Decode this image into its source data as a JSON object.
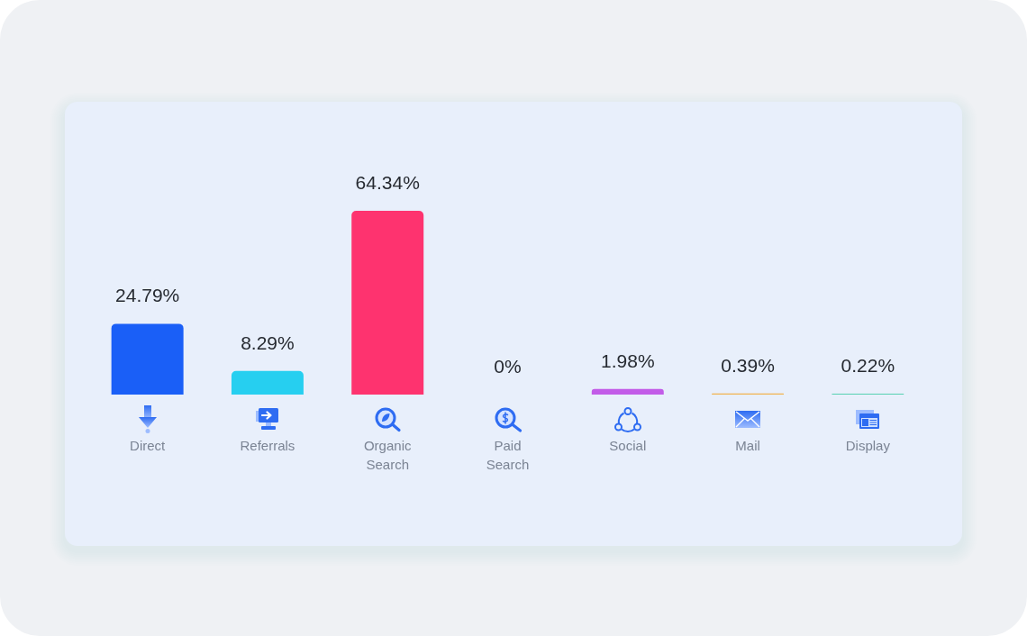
{
  "chart_data": {
    "type": "bar",
    "categories": [
      "Direct",
      "Referrals",
      "Organic Search",
      "Paid Search",
      "Social",
      "Mail",
      "Display"
    ],
    "values": [
      24.79,
      8.29,
      64.34,
      0,
      1.98,
      0.39,
      0.22
    ],
    "colors": [
      "#1a5ff7",
      "#26cff0",
      "#fe336f",
      "#dce1ea",
      "#c25ce8",
      "#f2b450",
      "#26c79b"
    ],
    "value_labels": [
      "24.79%",
      "8.29%",
      "64.34%",
      "0%",
      "1.98%",
      "0.39%",
      "0.22%"
    ],
    "tick_labels": "x"
  }
}
